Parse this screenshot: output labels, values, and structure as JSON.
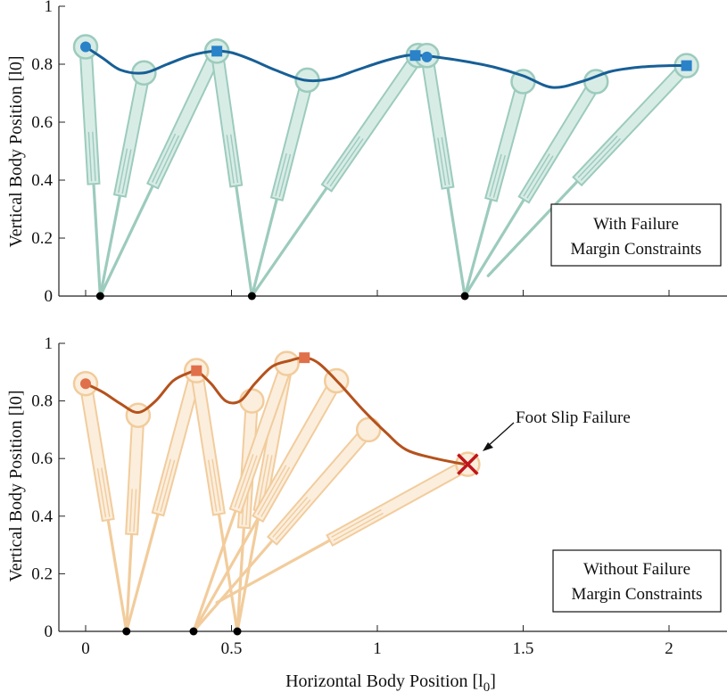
{
  "x_axis_label": "Horizontal Body Position [l",
  "x_axis_label_sub": "0",
  "x_axis_label_close": "]",
  "y_axis_label": "Vertical Body Position [l0]",
  "x_ticks": [
    "0",
    "0.5",
    "1",
    "1.5",
    "2"
  ],
  "y_ticks": [
    "0",
    "0.2",
    "0.4",
    "0.6",
    "0.8",
    "1"
  ],
  "colors": {
    "top_leg": "#9ccbbd",
    "top_leg_fill": "#d8ece6",
    "top_trajectory": "#175f96",
    "top_marker": "#2a82c8",
    "bottom_leg": "#f2cc9c",
    "bottom_leg_fill": "#fbeedd",
    "bottom_trajectory": "#b5521d",
    "bottom_marker": "#e0704a",
    "failure_marker": "#c0141b",
    "foot": "#000000"
  },
  "chart_data": [
    {
      "type": "line",
      "panel": "top",
      "legend": [
        "With Failure",
        "Margin Constraints"
      ],
      "xlim": [
        -0.1,
        2.2
      ],
      "ylim": [
        0,
        1
      ],
      "trajectory": {
        "x": [
          0.0,
          0.06,
          0.12,
          0.2,
          0.28,
          0.36,
          0.44,
          0.5,
          0.57,
          0.65,
          0.75,
          0.84,
          0.93,
          1.02,
          1.1,
          1.15,
          1.2,
          1.3,
          1.4,
          1.5,
          1.6,
          1.7,
          1.8,
          1.9,
          2.0,
          2.06
        ],
        "y": [
          0.86,
          0.82,
          0.78,
          0.77,
          0.8,
          0.83,
          0.845,
          0.84,
          0.815,
          0.78,
          0.745,
          0.75,
          0.78,
          0.81,
          0.83,
          0.83,
          0.825,
          0.81,
          0.79,
          0.76,
          0.72,
          0.74,
          0.775,
          0.79,
          0.795,
          0.795
        ]
      },
      "leg_configs": [
        {
          "hip": [
            0.0,
            0.86
          ],
          "foot": [
            0.05,
            0.0
          ]
        },
        {
          "hip": [
            0.2,
            0.77
          ],
          "foot": [
            0.05,
            0.0
          ]
        },
        {
          "hip": [
            0.45,
            0.845
          ],
          "foot": [
            0.05,
            0.0
          ]
        },
        {
          "hip": [
            0.45,
            0.845
          ],
          "foot": [
            0.57,
            0.0
          ]
        },
        {
          "hip": [
            0.76,
            0.745
          ],
          "foot": [
            0.57,
            0.0
          ]
        },
        {
          "hip": [
            1.14,
            0.83
          ],
          "foot": [
            0.57,
            0.0
          ]
        },
        {
          "hip": [
            1.17,
            0.83
          ],
          "foot": [
            1.3,
            0.0
          ]
        },
        {
          "hip": [
            1.5,
            0.74
          ],
          "foot": [
            1.3,
            0.0
          ]
        },
        {
          "hip": [
            1.75,
            0.74
          ],
          "foot": [
            1.3,
            0.0
          ]
        },
        {
          "hip": [
            2.06,
            0.795
          ],
          "foot": [
            1.38,
            0.07
          ]
        }
      ],
      "foot_contacts": [
        0.05,
        0.57,
        1.3
      ],
      "touchdown_markers": [
        {
          "x": 0.0,
          "y": 0.86,
          "shape": "circle"
        },
        {
          "x": 1.17,
          "y": 0.825,
          "shape": "circle"
        }
      ],
      "liftoff_markers": [
        {
          "x": 0.45,
          "y": 0.845,
          "shape": "square"
        },
        {
          "x": 1.13,
          "y": 0.83,
          "shape": "square"
        },
        {
          "x": 2.06,
          "y": 0.795,
          "shape": "square"
        }
      ]
    },
    {
      "type": "line",
      "panel": "bottom",
      "legend": [
        "Without Failure",
        "Margin Constraints"
      ],
      "annotation": "Foot Slip Failure",
      "xlim": [
        -0.1,
        2.2
      ],
      "ylim": [
        0,
        1
      ],
      "trajectory": {
        "x": [
          0.0,
          0.06,
          0.12,
          0.18,
          0.24,
          0.3,
          0.36,
          0.38,
          0.43,
          0.48,
          0.53,
          0.58,
          0.64,
          0.7,
          0.75,
          0.8,
          0.87,
          0.95,
          1.03,
          1.1,
          1.2,
          1.3
        ],
        "y": [
          0.86,
          0.83,
          0.79,
          0.76,
          0.8,
          0.87,
          0.9,
          0.905,
          0.86,
          0.8,
          0.8,
          0.86,
          0.92,
          0.94,
          0.95,
          0.93,
          0.86,
          0.77,
          0.69,
          0.63,
          0.6,
          0.58
        ]
      },
      "leg_configs": [
        {
          "hip": [
            0.0,
            0.86
          ],
          "foot": [
            0.14,
            0.0
          ]
        },
        {
          "hip": [
            0.18,
            0.75
          ],
          "foot": [
            0.14,
            0.0
          ]
        },
        {
          "hip": [
            0.38,
            0.905
          ],
          "foot": [
            0.14,
            0.0
          ]
        },
        {
          "hip": [
            0.38,
            0.905
          ],
          "foot": [
            0.52,
            0.0
          ]
        },
        {
          "hip": [
            0.57,
            0.8
          ],
          "foot": [
            0.52,
            0.0
          ]
        },
        {
          "hip": [
            0.69,
            0.93
          ],
          "foot": [
            0.52,
            0.0
          ]
        },
        {
          "hip": [
            0.69,
            0.93
          ],
          "foot": [
            0.37,
            0.0
          ]
        },
        {
          "hip": [
            0.86,
            0.87
          ],
          "foot": [
            0.37,
            0.0
          ]
        },
        {
          "hip": [
            0.97,
            0.7
          ],
          "foot": [
            0.37,
            0.0
          ]
        },
        {
          "hip": [
            1.31,
            0.58
          ],
          "foot": [
            0.45,
            0.1
          ]
        }
      ],
      "foot_contacts": [
        0.14,
        0.37,
        0.52
      ],
      "touchdown_markers": [
        {
          "x": 0.0,
          "y": 0.86,
          "shape": "circle"
        }
      ],
      "liftoff_markers": [
        {
          "x": 0.38,
          "y": 0.905,
          "shape": "square"
        },
        {
          "x": 0.75,
          "y": 0.95,
          "shape": "square"
        }
      ],
      "failure_marker": {
        "x": 1.31,
        "y": 0.58,
        "shape": "x"
      }
    }
  ]
}
